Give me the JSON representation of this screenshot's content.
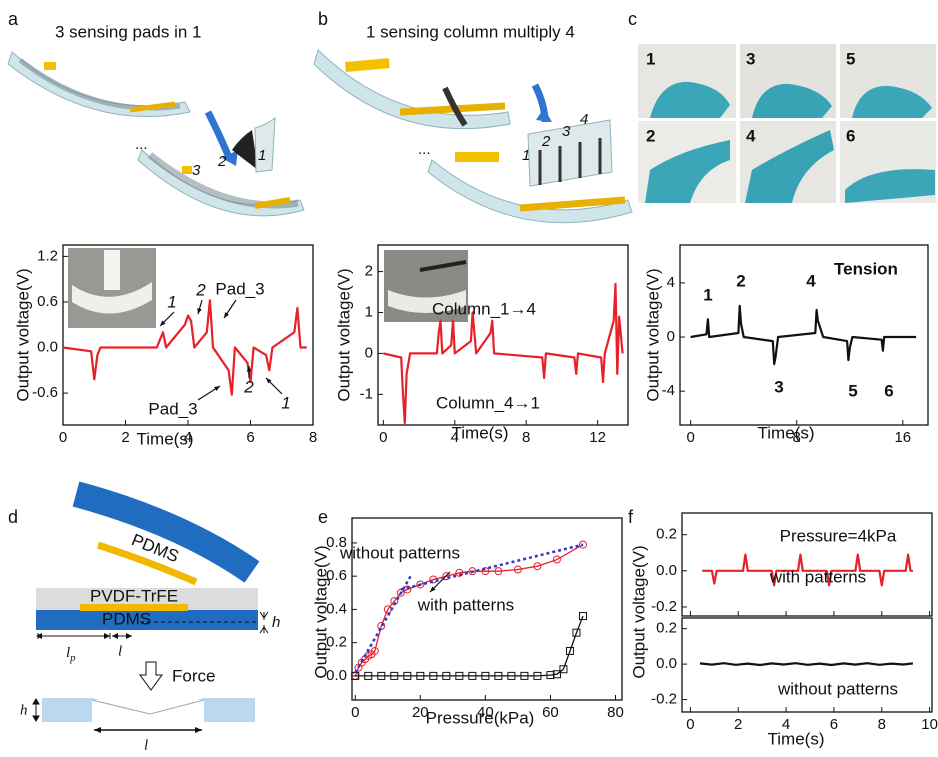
{
  "figure": {
    "panel_labels": [
      "a",
      "b",
      "c",
      "d",
      "e",
      "f"
    ],
    "top": {
      "a_title": "3 sensing pads in 1",
      "a_pads": [
        "3",
        "2",
        "1"
      ],
      "b_title": "1 sensing column multiply 4",
      "b_columns": [
        "1",
        "2",
        "3",
        "4"
      ],
      "ellipsis": "...",
      "c_photos": [
        "1",
        "3",
        "5",
        "2",
        "4",
        "6"
      ]
    },
    "diagram": {
      "pdms_top": "PDMS",
      "pvdf": "PVDF-TrFE",
      "pdms_bottom": "PDMS",
      "h": "h",
      "lp_main": "l",
      "lp_sub": "p",
      "l": "l",
      "force": "Force",
      "h2": "h",
      "l2": "l"
    }
  },
  "chart_data": [
    {
      "type": "line",
      "x_label": "Time(s)",
      "y_label": "Output voltage(V)",
      "xlim": [
        0,
        8
      ],
      "xticks": [
        0,
        2,
        4,
        6,
        8
      ],
      "ylim": [
        -1.02,
        1.35
      ],
      "yticks": [
        -0.6,
        {
          "value": 0,
          "label": "0.0"
        },
        0.6,
        1.2
      ],
      "series": [
        {
          "color": "#e8202a",
          "x": [
            0,
            0.9,
            1.0,
            1.1,
            1.2,
            3.0,
            3.1,
            3.2,
            3.3,
            3.9,
            4.0,
            4.1,
            4.2,
            4.6,
            4.7,
            4.8,
            5.3,
            5.4,
            5.5,
            5.9,
            6.0,
            6.1,
            6.5,
            6.6,
            6.7,
            7.4,
            7.5,
            7.6,
            7.8
          ],
          "values": [
            0,
            -0.05,
            -0.42,
            -0.1,
            0,
            0,
            0.1,
            0.2,
            0,
            0.3,
            0.42,
            0.35,
            0,
            0.2,
            0.62,
            0,
            -0.3,
            -0.62,
            0,
            -0.2,
            -0.45,
            0,
            -0.1,
            -0.3,
            0,
            0.2,
            0.52,
            0,
            0
          ]
        }
      ],
      "annotations": [
        "1",
        "2",
        "Pad_3",
        "Pad_3",
        "2",
        "1"
      ]
    },
    {
      "type": "line",
      "x_label": "Time(s)",
      "y_label": "Output voltage(V)",
      "xlim": [
        -0.3,
        13.7
      ],
      "xticks": [
        0,
        4,
        8,
        12
      ],
      "ylim": [
        -1.75,
        2.65
      ],
      "yticks": [
        -1,
        0,
        1,
        2
      ],
      "series": [
        {
          "color": "#e8202a",
          "x": [
            0,
            1.0,
            1.1,
            1.2,
            1.3,
            1.5,
            3.0,
            3.1,
            3.2,
            3.3,
            3.8,
            3.9,
            4.0,
            4.9,
            5.0,
            5.1,
            5.2,
            6.0,
            6.1,
            6.2,
            8.9,
            9.0,
            9.1,
            10.7,
            10.8,
            10.9,
            12.2,
            12.3,
            12.4,
            12.9,
            13.0,
            13.1,
            13.2,
            13.4
          ],
          "values": [
            0,
            -0.1,
            -1.0,
            -1.7,
            -0.5,
            0,
            0,
            0.5,
            0.8,
            0,
            0.2,
            0.8,
            0,
            0.3,
            1.0,
            0.5,
            0,
            0.5,
            0.8,
            0,
            -0.1,
            -0.6,
            0,
            -0.1,
            -0.5,
            0,
            -0.1,
            -0.7,
            0,
            0.8,
            1.7,
            -0.5,
            0.9,
            0
          ]
        }
      ],
      "annotations": [
        "Column_1→4",
        "Column_4→1"
      ]
    },
    {
      "type": "line",
      "x_label": "Time(s)",
      "y_label": "Output voltage(V)",
      "xlim": [
        -0.8,
        17.9
      ],
      "xticks": [
        0,
        8,
        16
      ],
      "ylim": [
        -6.5,
        6.8
      ],
      "yticks": [
        -4,
        0,
        4
      ],
      "series": [
        {
          "color": "#111111",
          "x": [
            0,
            1.2,
            1.3,
            1.4,
            3.6,
            3.7,
            3.8,
            4.0,
            6.2,
            6.3,
            6.4,
            6.6,
            9.4,
            9.5,
            9.6,
            10.0,
            11.8,
            11.9,
            12.0,
            12.2,
            14.4,
            14.5,
            14.6,
            17
          ],
          "values": [
            0,
            0.2,
            1.3,
            0,
            0.3,
            2.3,
            1.0,
            0,
            -0.3,
            -2.0,
            -1.5,
            0,
            0.3,
            2.0,
            1.2,
            0,
            -0.3,
            -1.7,
            -0.8,
            0,
            -0.2,
            -1.0,
            0,
            0
          ]
        }
      ],
      "annotations": [
        "1",
        "2",
        "3",
        "4",
        "5",
        "6",
        "Tension"
      ]
    },
    {
      "type": "line",
      "x_label": "Pressure(kPa)",
      "y_label": "Output voltage(V)",
      "xlim": [
        -1,
        82
      ],
      "xticks": [
        0,
        20,
        40,
        60,
        80
      ],
      "ylim": [
        -0.145,
        0.95
      ],
      "yticks": [
        {
          "value": 0,
          "label": "0.0"
        },
        0.2,
        0.4,
        0.6,
        0.8
      ],
      "series": [
        {
          "name": "with patterns",
          "color": "#e8202a",
          "markers": "circle",
          "x": [
            0,
            1,
            2,
            3,
            4,
            5,
            6,
            8,
            10,
            12,
            14,
            16,
            20,
            24,
            28,
            32,
            36,
            40,
            44,
            50,
            56,
            62,
            70
          ],
          "values": [
            0,
            0.05,
            0.08,
            0.1,
            0.12,
            0.13,
            0.15,
            0.3,
            0.4,
            0.45,
            0.5,
            0.52,
            0.55,
            0.58,
            0.6,
            0.62,
            0.63,
            0.63,
            0.63,
            0.64,
            0.66,
            0.7,
            0.79
          ]
        },
        {
          "name": "without patterns",
          "color": "#111111",
          "markers": "square",
          "x": [
            0,
            4,
            8,
            12,
            16,
            20,
            24,
            28,
            32,
            36,
            40,
            44,
            48,
            52,
            56,
            60,
            62,
            64,
            66,
            68,
            70
          ],
          "values": [
            0,
            0,
            0,
            0,
            0,
            0,
            0,
            0,
            0,
            0,
            0,
            0,
            0,
            0,
            0,
            0.005,
            0.01,
            0.04,
            0.15,
            0.26,
            0.36
          ]
        },
        {
          "color": "#3535d0",
          "dash": true,
          "x": [
            0,
            17
          ],
          "values": [
            0.02,
            0.6
          ]
        },
        {
          "color": "#3535d0",
          "dash": true,
          "x": [
            14,
            70
          ],
          "values": [
            0.52,
            0.79
          ]
        }
      ],
      "annotations": []
    },
    {
      "type": "line",
      "xlim": [
        -0.35,
        10.1
      ],
      "xticks": [
        0,
        2,
        4,
        6,
        8,
        10
      ],
      "ylim": [
        -0.25,
        0.32
      ],
      "yticks": [
        -0.2,
        {
          "value": 0,
          "label": "0.0"
        },
        0.2
      ],
      "series": [
        {
          "name": "with patterns",
          "color": "#e8202a",
          "x": [
            0.5,
            0.9,
            1.0,
            1.1,
            2.2,
            2.3,
            2.4,
            3.4,
            3.5,
            3.6,
            4.5,
            4.6,
            4.7,
            5.7,
            5.8,
            5.9,
            6.9,
            7.0,
            7.1,
            7.9,
            8.0,
            8.1,
            9.0,
            9.1,
            9.2,
            9.3
          ],
          "values": [
            0,
            0,
            -0.07,
            0,
            0,
            0.09,
            0,
            0,
            -0.08,
            0,
            0,
            0.09,
            0,
            0,
            -0.08,
            0,
            0,
            0.09,
            0,
            0,
            -0.08,
            0,
            0,
            0.09,
            0,
            0
          ]
        }
      ],
      "annotations": [
        "Pressure=4kPa"
      ]
    },
    {
      "type": "line",
      "x_label": "Time(s)",
      "y_label": "Output voltage(V)",
      "xlim": [
        -0.35,
        10.1
      ],
      "xticks": [
        0,
        2,
        4,
        6,
        8,
        10
      ],
      "ylim": [
        -0.27,
        0.26
      ],
      "yticks": [
        -0.2,
        {
          "value": 0,
          "label": "0.0"
        },
        0.2
      ],
      "series": [
        {
          "name": "without patterns",
          "color": "#111111",
          "x": [
            0.4,
            0.9,
            1.4,
            1.9,
            2.4,
            2.9,
            3.4,
            3.9,
            4.4,
            4.9,
            5.4,
            5.9,
            6.4,
            6.9,
            7.4,
            7.9,
            8.4,
            8.9,
            9.3
          ],
          "values": [
            0.004,
            -0.003,
            0.005,
            -0.004,
            0.003,
            -0.005,
            0.004,
            -0.002,
            0.005,
            -0.004,
            0.003,
            -0.005,
            0.004,
            -0.003,
            0.005,
            -0.004,
            0.003,
            -0.002,
            0.004
          ]
        }
      ],
      "annotations": []
    }
  ]
}
